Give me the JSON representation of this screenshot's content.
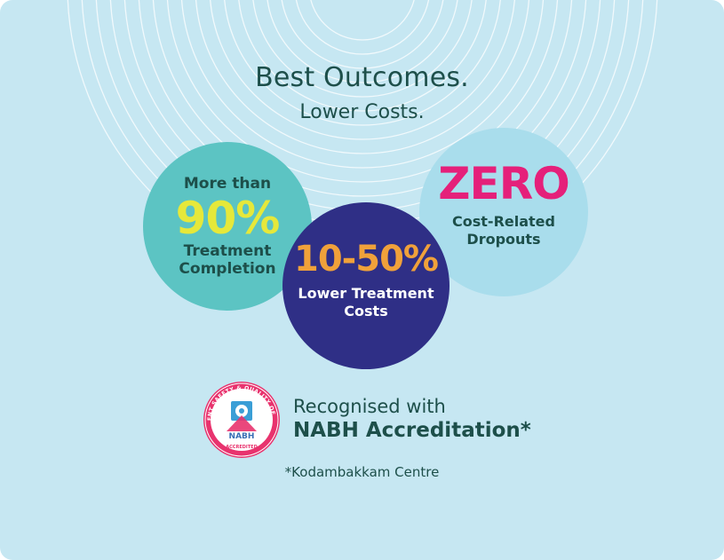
{
  "colors": {
    "background": "#c6e7f2",
    "heading": "#1d4f4a",
    "teal_circle": "#5cc4c3",
    "sky_circle": "#a9ddec",
    "navy_circle": "#2f2f86",
    "yellow_accent": "#e6e83a",
    "pink_accent": "#e5207a",
    "orange_accent": "#f0a13a",
    "badge_ring": "#e8336e"
  },
  "headline": {
    "line1": "Best Outcomes.",
    "line2": "Lower Costs."
  },
  "stats": {
    "completion": {
      "prefix": "More than",
      "value": "90%",
      "label_line1": "Treatment",
      "label_line2": "Completion"
    },
    "costs": {
      "value": "10-50%",
      "label_line1": "Lower Treatment",
      "label_line2": "Costs"
    },
    "dropouts": {
      "value": "ZERO",
      "label_line1": "Cost-Related",
      "label_line2": "Dropouts"
    }
  },
  "accreditation": {
    "badge_icon": "nabh-seal-icon",
    "badge_arc_text": "PATIENT SAFETY & QUALITY OF CARE",
    "badge_name": "NABH",
    "badge_bottom": "• ACCREDITED •",
    "line1": "Recognised with",
    "line2": "NABH Accreditation*"
  },
  "footnote": "*Kodambakkam Centre"
}
